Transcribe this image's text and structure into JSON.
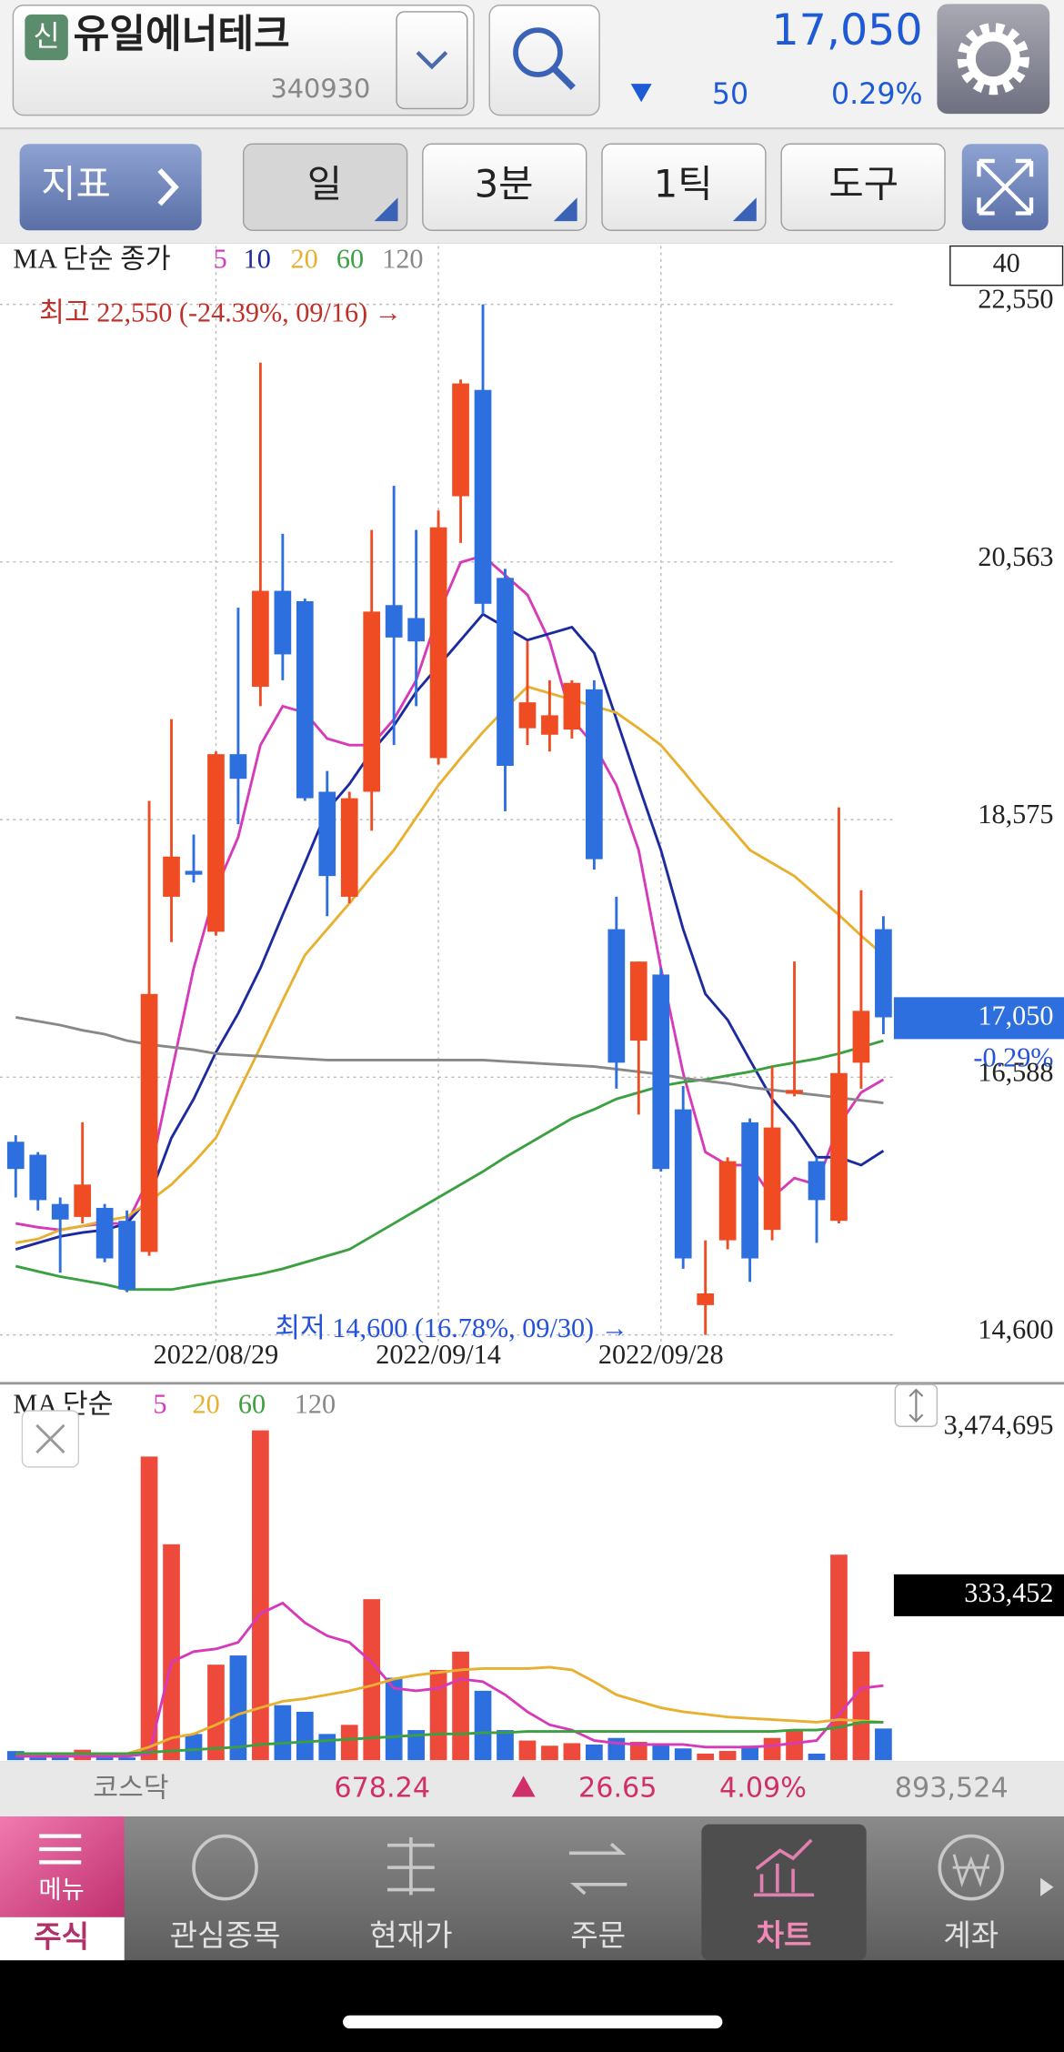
{
  "header": {
    "badge": "신",
    "name": "유일에너테크",
    "code": "340930",
    "price": "17,050",
    "change": "50",
    "change_rate": "0.29%"
  },
  "toolbar": {
    "indicator": "지표",
    "period": "일",
    "minute": "3분",
    "tick": "1틱",
    "tools": "도구"
  },
  "chart_data": [
    {
      "type": "candlestick",
      "legend_title": "MA 단순 종가",
      "period_box": "40",
      "high_note": "최고 22,550 (-24.39%, 09/16) →",
      "low_note": "최저 14,600 (16.78%, 09/30) →",
      "price_tag": "17,050",
      "change_tag": "-0.29%",
      "up_color": "#f04c23",
      "down_color": "#2e6fdf",
      "categories": [
        null,
        null,
        null,
        null,
        null,
        null,
        null,
        null,
        null,
        "2022/08/29",
        null,
        null,
        null,
        null,
        null,
        null,
        null,
        null,
        null,
        "2022/09/14",
        null,
        null,
        null,
        null,
        null,
        null,
        null,
        null,
        null,
        "2022/09/28",
        null,
        null,
        null,
        null,
        null,
        null,
        null,
        null,
        null,
        null
      ],
      "open": [
        16090,
        15990,
        15610,
        15510,
        15580,
        15480,
        15240,
        17980,
        18180,
        17710,
        19080,
        19600,
        20340,
        20260,
        18790,
        17980,
        18790,
        20230,
        20130,
        19050,
        21070,
        21890,
        20440,
        19280,
        19230,
        19270,
        19580,
        17730,
        16870,
        17380,
        16340,
        14830,
        15330,
        16240,
        15410,
        16460,
        15940,
        15480,
        16700,
        17730
      ],
      "high": [
        16140,
        16010,
        15660,
        16240,
        15610,
        15560,
        18720,
        19350,
        18460,
        19100,
        20210,
        22100,
        20780,
        20280,
        18950,
        18790,
        20810,
        21150,
        20810,
        20960,
        21970,
        22550,
        20510,
        19950,
        19650,
        19650,
        19650,
        17980,
        17480,
        17430,
        16520,
        15330,
        15970,
        16270,
        16670,
        17480,
        15970,
        18670,
        18030,
        17830
      ],
      "low": [
        15660,
        15560,
        15080,
        15460,
        15160,
        14930,
        15210,
        17630,
        18090,
        17680,
        18540,
        19450,
        19650,
        18720,
        17830,
        17930,
        18490,
        19150,
        19450,
        19000,
        20710,
        20160,
        18640,
        19150,
        19100,
        19200,
        18190,
        16500,
        16300,
        15860,
        15110,
        14600,
        15260,
        15010,
        15330,
        16440,
        15310,
        15460,
        16500,
        16920
      ],
      "close": [
        15880,
        15640,
        15490,
        15760,
        15190,
        14950,
        17230,
        18290,
        18150,
        19080,
        18890,
        20340,
        19850,
        18740,
        18140,
        18740,
        20180,
        19980,
        19950,
        20830,
        21940,
        20240,
        18990,
        19480,
        19380,
        19630,
        18270,
        16700,
        17480,
        15880,
        15190,
        14920,
        15940,
        15190,
        16200,
        16490,
        15640,
        16620,
        17100,
        17050
      ],
      "ma_lines": [
        {
          "name": "5",
          "color": "#d63ab8",
          "values": [
            15460,
            15430,
            15410,
            15440,
            15460,
            15460,
            15810,
            16620,
            17430,
            18040,
            18440,
            19150,
            19450,
            19400,
            19200,
            19150,
            19150,
            19350,
            19650,
            20160,
            20560,
            20610,
            20460,
            20310,
            19950,
            19350,
            19150,
            18840,
            18340,
            17430,
            16620,
            16010,
            15910,
            15910,
            15660,
            15810,
            15760,
            16220,
            16470,
            16570
          ]
        },
        {
          "name": "10",
          "color": "#1c2aa0",
          "values": [
            15260,
            15310,
            15360,
            15390,
            15410,
            15460,
            15660,
            16120,
            16420,
            16780,
            17080,
            17430,
            17840,
            18240,
            18650,
            18850,
            19100,
            19300,
            19560,
            19760,
            19960,
            20160,
            20060,
            19960,
            20010,
            20060,
            19860,
            19350,
            18840,
            18340,
            17730,
            17230,
            17030,
            16720,
            16420,
            16220,
            15970,
            15970,
            15910,
            16020
          ]
        },
        {
          "name": "20",
          "color": "#e8b030",
          "values": [
            15310,
            15340,
            15410,
            15440,
            15480,
            15510,
            15630,
            15760,
            15930,
            16120,
            16470,
            16820,
            17180,
            17530,
            17730,
            17930,
            18140,
            18340,
            18590,
            18840,
            19050,
            19250,
            19430,
            19600,
            19550,
            19500,
            19450,
            19400,
            19280,
            19150,
            18950,
            18740,
            18540,
            18340,
            18240,
            18140,
            17990,
            17840,
            17680,
            17530
          ]
        },
        {
          "name": "60",
          "color": "#3aa040",
          "values": [
            15130,
            15090,
            15050,
            15020,
            14990,
            14950,
            14950,
            14950,
            14980,
            15010,
            15040,
            15070,
            15110,
            15160,
            15210,
            15260,
            15360,
            15460,
            15560,
            15660,
            15760,
            15860,
            15970,
            16070,
            16170,
            16270,
            16340,
            16420,
            16470,
            16520,
            16550,
            16570,
            16600,
            16630,
            16670,
            16700,
            16730,
            16770,
            16820,
            16870
          ]
        },
        {
          "name": "120",
          "color": "#888888",
          "values": [
            17050,
            17020,
            16990,
            16950,
            16920,
            16870,
            16840,
            16820,
            16800,
            16770,
            16760,
            16750,
            16740,
            16730,
            16720,
            16720,
            16720,
            16720,
            16720,
            16720,
            16720,
            16720,
            16710,
            16700,
            16690,
            16680,
            16670,
            16650,
            16630,
            16610,
            16580,
            16560,
            16540,
            16510,
            16490,
            16470,
            16450,
            16430,
            16410,
            16390
          ]
        }
      ],
      "ylim": [
        14550,
        23000
      ],
      "yticks": [
        {
          "value": 22550,
          "label": "22,550"
        },
        {
          "value": 20563,
          "label": "20,563"
        },
        {
          "value": 18575,
          "label": "18,575"
        },
        {
          "value": 16588,
          "label": "16,588"
        },
        {
          "value": 14600,
          "label": "14,600"
        }
      ],
      "grid": true
    },
    {
      "type": "bar",
      "legend_title": "MA 단순",
      "value_tag": "333,452",
      "legend_inactive": {
        "name": "120",
        "color": "#888888"
      },
      "values": [
        96000,
        28000,
        28000,
        110000,
        28000,
        28000,
        3199000,
        2275000,
        276000,
        1006000,
        1103000,
        3474695,
        579000,
        510000,
        276000,
        372000,
        1696000,
        869000,
        317000,
        951000,
        1144000,
        731000,
        317000,
        207000,
        152000,
        179000,
        165000,
        234000,
        193000,
        179000,
        124000,
        69000,
        97000,
        152000,
        234000,
        317000,
        69000,
        2165000,
        1144000,
        333452
      ],
      "ma_lines": [
        {
          "name": "5",
          "color": "#d63ab8",
          "values": [
            41000,
            41000,
            41000,
            41000,
            41000,
            41000,
            69000,
            1034000,
            1144000,
            1172000,
            1241000,
            1544000,
            1655000,
            1448000,
            1310000,
            1241000,
            1034000,
            758000,
            731000,
            758000,
            855000,
            827000,
            689000,
            510000,
            372000,
            317000,
            207000,
            179000,
            165000,
            165000,
            165000,
            138000,
            138000,
            138000,
            152000,
            179000,
            207000,
            483000,
            758000,
            786000
          ]
        },
        {
          "name": "20",
          "color": "#e8b030",
          "values": [
            69000,
            69000,
            69000,
            69000,
            69000,
            69000,
            138000,
            234000,
            276000,
            372000,
            483000,
            552000,
            620000,
            648000,
            689000,
            731000,
            786000,
            855000,
            896000,
            924000,
            951000,
            965000,
            965000,
            965000,
            979000,
            951000,
            827000,
            689000,
            620000,
            552000,
            510000,
            483000,
            455000,
            441000,
            427000,
            414000,
            400000,
            427000,
            414000,
            400000
          ]
        },
        {
          "name": "60",
          "color": "#3aa040",
          "values": [
            69000,
            69000,
            69000,
            69000,
            69000,
            69000,
            83000,
            97000,
            110000,
            124000,
            138000,
            165000,
            179000,
            193000,
            207000,
            220000,
            234000,
            248000,
            262000,
            276000,
            276000,
            290000,
            290000,
            303000,
            303000,
            303000,
            303000,
            303000,
            303000,
            303000,
            303000,
            303000,
            303000,
            303000,
            303000,
            317000,
            317000,
            345000,
            400000,
            400000
          ]
        }
      ],
      "ylim": [
        0,
        3474695
      ],
      "yticks": [
        {
          "value": 3474695,
          "label": "3,474,695"
        }
      ]
    }
  ],
  "market_bar": {
    "name": "코스닥",
    "index": "678.24",
    "change": "26.65",
    "rate": "4.09%",
    "volume": "893,524"
  },
  "tabs": {
    "menu": "메뉴",
    "items": [
      "주식",
      "관심종목",
      "현재가",
      "주문",
      "차트",
      "계좌"
    ]
  }
}
